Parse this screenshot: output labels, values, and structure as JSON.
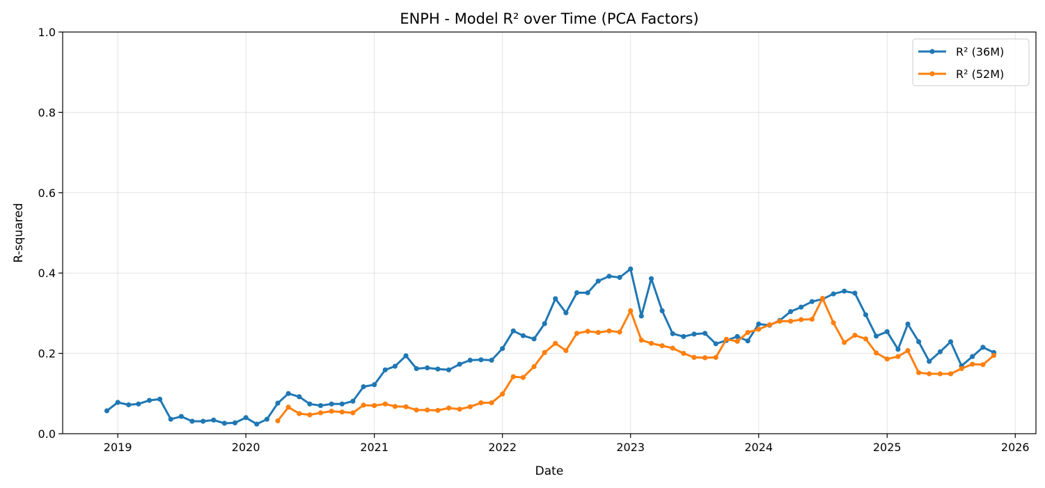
{
  "chart_data": {
    "type": "line",
    "title": "ENPH - Model R² over Time (PCA Factors)",
    "xlabel": "Date",
    "ylabel": "R-squared",
    "xlim": [
      "2018-07-28",
      "2026-03-01"
    ],
    "ylim": [
      0,
      1.0
    ],
    "x_ticks": [
      "2019",
      "2020",
      "2021",
      "2022",
      "2023",
      "2024",
      "2025",
      "2026"
    ],
    "y_ticks": [
      "0.0",
      "0.2",
      "0.4",
      "0.6",
      "0.8",
      "1.0"
    ],
    "grid": true,
    "legend_position": "top-right",
    "series": [
      {
        "name": "R² (36M)",
        "color": "#1f77b4",
        "start": "2018-12",
        "values": [
          0.057,
          0.078,
          0.072,
          0.074,
          0.083,
          0.086,
          0.036,
          0.043,
          0.031,
          0.031,
          0.034,
          0.026,
          0.027,
          0.04,
          0.024,
          0.036,
          0.076,
          0.1,
          0.092,
          0.074,
          0.07,
          0.074,
          0.074,
          0.081,
          0.117,
          0.122,
          0.159,
          0.168,
          0.194,
          0.162,
          0.164,
          0.161,
          0.159,
          0.173,
          0.183,
          0.184,
          0.183,
          0.212,
          0.256,
          0.244,
          0.236,
          0.274,
          0.336,
          0.301,
          0.351,
          0.351,
          0.38,
          0.392,
          0.389,
          0.41,
          0.293,
          0.386,
          0.306,
          0.249,
          0.242,
          0.248,
          0.25,
          0.224,
          0.232,
          0.242,
          0.231,
          0.273,
          0.27,
          0.282,
          0.304,
          0.315,
          0.329,
          0.335,
          0.348,
          0.355,
          0.35,
          0.296,
          0.243,
          0.254,
          0.21,
          0.273,
          0.229,
          0.18,
          0.204,
          0.229,
          0.169,
          0.192,
          0.215,
          0.202
        ]
      },
      {
        "name": "R² (52M)",
        "color": "#ff7f0e",
        "start": "2020-04",
        "values": [
          0.032,
          0.066,
          0.05,
          0.047,
          0.052,
          0.056,
          0.054,
          0.052,
          0.071,
          0.07,
          0.074,
          0.068,
          0.067,
          0.059,
          0.059,
          0.058,
          0.064,
          0.061,
          0.067,
          0.077,
          0.077,
          0.099,
          0.142,
          0.14,
          0.167,
          0.202,
          0.225,
          0.207,
          0.25,
          0.255,
          0.252,
          0.256,
          0.253,
          0.306,
          0.233,
          0.225,
          0.219,
          0.213,
          0.2,
          0.19,
          0.189,
          0.19,
          0.235,
          0.23,
          0.252,
          0.26,
          0.271,
          0.28,
          0.28,
          0.284,
          0.285,
          0.337,
          0.276,
          0.227,
          0.245,
          0.236,
          0.201,
          0.186,
          0.192,
          0.207,
          0.152,
          0.149,
          0.149,
          0.149,
          0.162,
          0.173,
          0.172,
          0.195
        ]
      }
    ]
  }
}
